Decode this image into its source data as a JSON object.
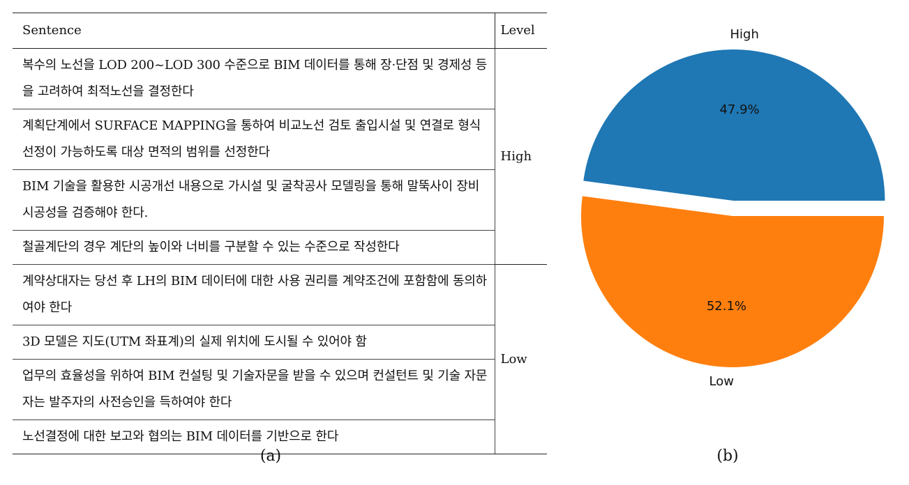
{
  "table": {
    "headers": {
      "sentence": "Sentence",
      "level": "Level"
    },
    "groups": [
      {
        "level": "High",
        "sentences": [
          "복수의 노선을 LOD 200~LOD 300 수준으로 BIM 데이터를 통해 장·단점 및 경제성 등을 고려하여 최적노선을 결정한다",
          "계획단계에서 SURFACE MAPPING을 통하여 비교노선 검토 출입시설 및 연결로 형식 선정이 가능하도록 대상 면적의 범위를 선정한다",
          "BIM 기술을 활용한 시공개선 내용으로 가시설 및 굴착공사 모델링을 통해 말뚝사이 장비 시공성을 검증해야 한다.",
          "철골계단의 경우 계단의 높이와 너비를 구분할 수 있는 수준으로 작성한다"
        ]
      },
      {
        "level": "Low",
        "sentences": [
          "계약상대자는 당선 후 LH의 BIM 데이터에 대한 사용 권리를 계약조건에 포함함에 동의하여야 한다",
          "3D 모델은 지도(UTM 좌표계)의 실제 위치에 도시될 수 있어야 함",
          "업무의 효율성을 위하여 BIM 컨설팅 및 기술자문을 받을 수 있으며 컨설턴트 및 기술 자문자는 발주자의 사전승인을 득하여야 한다",
          "노선결정에 대한 보고와 협의는 BIM 데이터를 기반으로 한다"
        ]
      }
    ]
  },
  "captions": {
    "a": "(a)",
    "b": "(b)"
  },
  "chart_data": {
    "type": "pie",
    "title": "",
    "slices": [
      {
        "label": "High",
        "value": 47.9,
        "display": "47.9%",
        "color": "#1f77b4",
        "exploded": true
      },
      {
        "label": "Low",
        "value": 52.1,
        "display": "52.1%",
        "color": "#ff7f0e",
        "exploded": false
      }
    ],
    "start_angle_deg": 0,
    "direction": "counterclockwise"
  }
}
